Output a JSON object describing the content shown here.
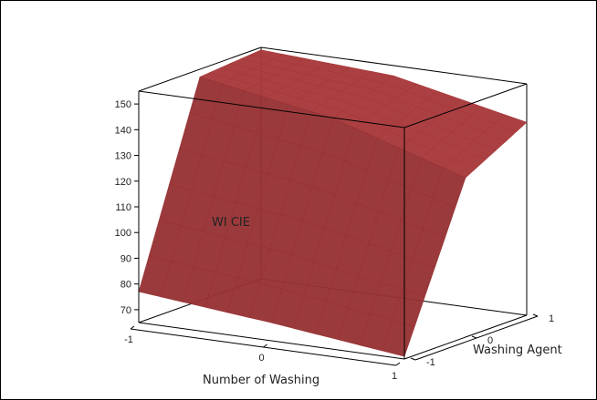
{
  "chart_data": {
    "type": "surface3d",
    "title": "",
    "xlabel": "Number of Washing",
    "ylabel": "Washing Agent",
    "zlabel": "WI CIE",
    "x_ticks": [
      "-1",
      "0",
      "1"
    ],
    "y_ticks": [
      "-1",
      "0",
      "1"
    ],
    "z_ticks": [
      "70",
      "80",
      "90",
      "100",
      "110",
      "120",
      "130",
      "140",
      "150"
    ],
    "xlim": [
      -1,
      1
    ],
    "ylim": [
      -1,
      1
    ],
    "zlim": [
      65,
      155
    ],
    "surface_color": "#a8383a",
    "surface": {
      "x": [
        -1,
        0,
        1
      ],
      "y": [
        -1,
        0,
        1
      ],
      "z": [
        [
          77,
          72,
          66
        ],
        [
          152,
          143,
          127
        ],
        [
          154,
          151,
          140
        ]
      ]
    }
  }
}
